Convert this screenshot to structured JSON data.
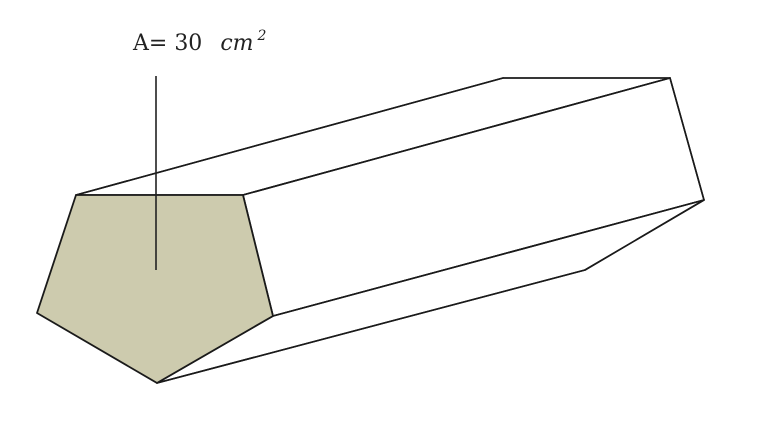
{
  "figure": {
    "area_label": {
      "prefix": "A= 30",
      "unit": "cm",
      "exponent": "2"
    },
    "colors": {
      "base_fill": "#cdcbae",
      "edge": "#1a1a1a",
      "background": "#ffffff"
    },
    "shape": "pentagonal prism"
  }
}
